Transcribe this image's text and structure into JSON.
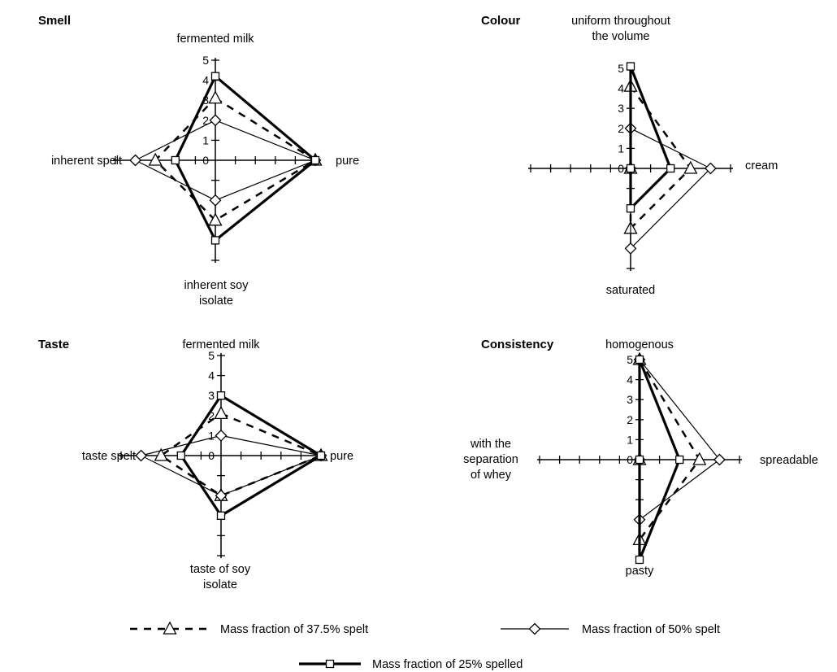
{
  "series_styles": [
    {
      "key": "s375",
      "stroke": "#000000",
      "width": 2.5,
      "dash": "9,8",
      "marker": "triangle"
    },
    {
      "key": "s50",
      "stroke": "#000000",
      "width": 1.2,
      "dash": "",
      "marker": "diamond"
    },
    {
      "key": "s25",
      "stroke": "#000000",
      "width": 3.2,
      "dash": "",
      "marker": "square"
    }
  ],
  "legend": [
    {
      "key": "s375",
      "label": "Mass fraction of 37.5% spelt"
    },
    {
      "key": "s50",
      "label": "Mass fraction of 50% spelt"
    },
    {
      "key": "s25",
      "label": "Mass fraction of 25% spelled"
    }
  ],
  "chart_data": [
    {
      "type": "radar",
      "title": "Smell",
      "rlim": [
        0,
        5
      ],
      "ticks": [
        "0",
        "1",
        "2",
        "3",
        "4",
        "5"
      ],
      "axes": [
        {
          "direction": "up",
          "label": [
            "fermented milk"
          ]
        },
        {
          "direction": "right",
          "label": [
            "pure"
          ]
        },
        {
          "direction": "down",
          "label": [
            "inherent soy",
            "isolate"
          ]
        },
        {
          "direction": "left",
          "label": [
            "inherent spelt"
          ]
        }
      ],
      "series": [
        {
          "key": "s375",
          "values": [
            3.1,
            5.0,
            3.0,
            3.0
          ]
        },
        {
          "key": "s50",
          "values": [
            2.0,
            5.0,
            2.0,
            4.0
          ]
        },
        {
          "key": "s25",
          "values": [
            4.2,
            5.0,
            4.0,
            2.0
          ]
        }
      ]
    },
    {
      "type": "radar",
      "title": "Colour",
      "rlim": [
        0,
        5
      ],
      "ticks": [
        "0",
        "1",
        "2",
        "3",
        "4",
        "5"
      ],
      "axes": [
        {
          "direction": "up",
          "label": [
            "uniform throughout",
            "the volume"
          ]
        },
        {
          "direction": "right",
          "label": [
            "cream"
          ]
        },
        {
          "direction": "down",
          "label": [
            "saturated"
          ]
        },
        {
          "direction": "left",
          "label": []
        }
      ],
      "series": [
        {
          "key": "s375",
          "values": [
            4.1,
            3.0,
            3.0,
            0
          ]
        },
        {
          "key": "s50",
          "values": [
            2.0,
            4.0,
            4.0,
            0
          ]
        },
        {
          "key": "s25",
          "values": [
            5.1,
            2.0,
            2.0,
            0
          ]
        }
      ]
    },
    {
      "type": "radar",
      "title": "Taste",
      "rlim": [
        0,
        5
      ],
      "ticks": [
        "0",
        "1",
        "2",
        "3",
        "4",
        "5"
      ],
      "axes": [
        {
          "direction": "up",
          "label": [
            "fermented milk"
          ]
        },
        {
          "direction": "right",
          "label": [
            "pure"
          ]
        },
        {
          "direction": "down",
          "label": [
            "taste of soy",
            "isolate"
          ]
        },
        {
          "direction": "left",
          "label": [
            "taste spelt"
          ]
        }
      ],
      "series": [
        {
          "key": "s375",
          "values": [
            2.1,
            5.0,
            2.0,
            3.0
          ]
        },
        {
          "key": "s50",
          "values": [
            1.0,
            5.0,
            2.0,
            4.0
          ]
        },
        {
          "key": "s25",
          "values": [
            3.0,
            5.0,
            3.0,
            2.0
          ]
        }
      ]
    },
    {
      "type": "radar",
      "title": "Consistency",
      "rlim": [
        0,
        5
      ],
      "ticks": [
        "0",
        "1",
        "2",
        "3",
        "4",
        "5"
      ],
      "axes": [
        {
          "direction": "up",
          "label": [
            "homogenous"
          ]
        },
        {
          "direction": "right",
          "label": [
            "spreadable"
          ]
        },
        {
          "direction": "down",
          "label": [
            "pasty"
          ]
        },
        {
          "direction": "left",
          "label": [
            "with the",
            "separation",
            "of whey"
          ]
        }
      ],
      "series": [
        {
          "key": "s375",
          "values": [
            5.0,
            3.0,
            4.0,
            0
          ]
        },
        {
          "key": "s50",
          "values": [
            5.0,
            4.0,
            3.0,
            0
          ]
        },
        {
          "key": "s25",
          "values": [
            5.0,
            2.0,
            5.0,
            0
          ]
        }
      ]
    }
  ]
}
